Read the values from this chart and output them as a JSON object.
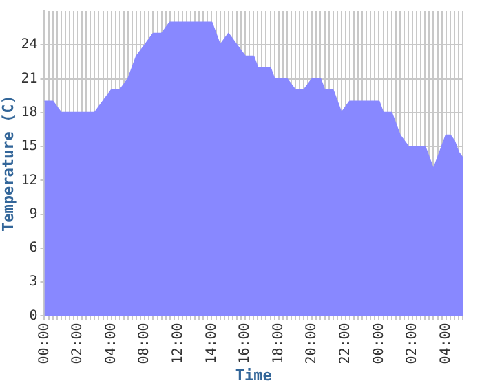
{
  "chart_data": {
    "type": "area",
    "xlabel": "Time",
    "ylabel": "Temperature (C)",
    "categories": [
      "00:00",
      null,
      null,
      null,
      null,
      null,
      null,
      null,
      "02:00",
      null,
      null,
      null,
      null,
      null,
      null,
      null,
      "04:00",
      null,
      null,
      null,
      null,
      null,
      null,
      null,
      "08:00",
      null,
      null,
      null,
      null,
      null,
      null,
      null,
      "12:00",
      null,
      null,
      null,
      null,
      null,
      null,
      null,
      "14:00",
      null,
      null,
      null,
      null,
      null,
      null,
      null,
      "16:00",
      null,
      null,
      null,
      null,
      null,
      null,
      null,
      "18:00",
      null,
      null,
      null,
      null,
      null,
      null,
      null,
      "20:00",
      null,
      null,
      null,
      null,
      null,
      null,
      null,
      "22:00",
      null,
      null,
      null,
      null,
      null,
      null,
      null,
      "00:00",
      null,
      null,
      null,
      null,
      null,
      null,
      null,
      "02:00",
      null,
      null,
      null,
      null,
      null,
      null,
      null,
      "04:00",
      null,
      null,
      null,
      null
    ],
    "series": [
      {
        "color": "#8888ff",
        "values": [
          19,
          19,
          19,
          18.5,
          18,
          18,
          18,
          18,
          18,
          18,
          18,
          18,
          18,
          18.5,
          19,
          19.5,
          20,
          20,
          20,
          20.5,
          21,
          22,
          23,
          23.5,
          24,
          24.5,
          25,
          25,
          25,
          25.5,
          26,
          26,
          26,
          26,
          26,
          26,
          26,
          26,
          26,
          26,
          26,
          25,
          24,
          24.5,
          25,
          24.5,
          24,
          23.5,
          23,
          23,
          23,
          22,
          22,
          22,
          22,
          21,
          21,
          21,
          21,
          20.5,
          20,
          20,
          20,
          20.5,
          21,
          21,
          21,
          20,
          20,
          20,
          19,
          18,
          18.5,
          19,
          19,
          19,
          19,
          19,
          19,
          19,
          19,
          18,
          18,
          18,
          17,
          16,
          15.5,
          15,
          15,
          15,
          15,
          15,
          14,
          13,
          14,
          15,
          16,
          16,
          15.5,
          14.5,
          14
        ]
      }
    ],
    "ylim": [
      0,
      27
    ],
    "yticks": [
      0,
      3,
      6,
      9,
      12,
      15,
      18,
      21,
      24
    ],
    "grid": true
  }
}
